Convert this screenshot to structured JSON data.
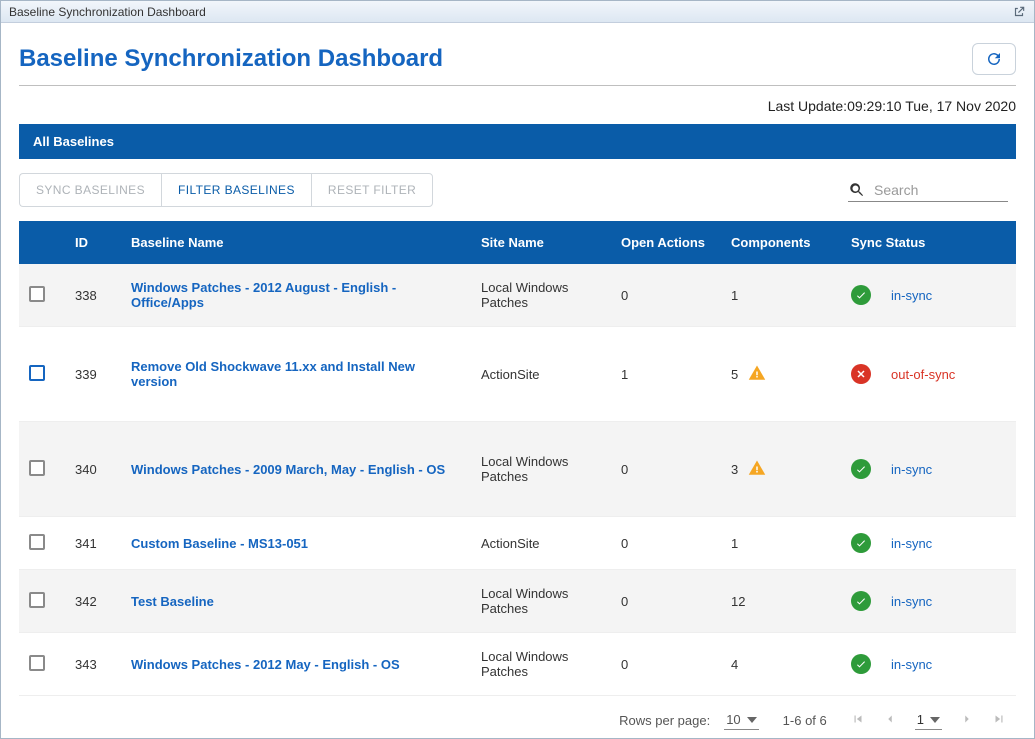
{
  "window": {
    "title": "Baseline Synchronization Dashboard"
  },
  "header": {
    "title": "Baseline Synchronization Dashboard"
  },
  "last_update": {
    "prefix": "Last Update:",
    "time": "09:29:10 Tue, 17 Nov 2020"
  },
  "tabs": {
    "all": "All Baselines"
  },
  "buttons": {
    "sync": "SYNC BASELINES",
    "filter": "FILTER BASELINES",
    "reset": "RESET FILTER"
  },
  "search": {
    "placeholder": "Search"
  },
  "columns": {
    "id": "ID",
    "name": "Baseline Name",
    "site": "Site Name",
    "open": "Open Actions",
    "comp": "Components",
    "status": "Sync Status"
  },
  "status_labels": {
    "in": "in-sync",
    "out": "out-of-sync"
  },
  "rows": [
    {
      "id": "338",
      "name": "Windows Patches - 2012 August - English - Office/Apps",
      "site": "Local Windows Patches",
      "open": "0",
      "comp": "1",
      "warn": false,
      "status": "in",
      "shade": true,
      "tall": false,
      "selected": false
    },
    {
      "id": "339",
      "name": "Remove Old Shockwave 11.xx and Install New version",
      "site": "ActionSite",
      "open": "1",
      "comp": "5",
      "warn": true,
      "status": "out",
      "shade": false,
      "tall": true,
      "selected": true
    },
    {
      "id": "340",
      "name": "Windows Patches - 2009 March, May - English - OS",
      "site": "Local Windows Patches",
      "open": "0",
      "comp": "3",
      "warn": true,
      "status": "in",
      "shade": true,
      "tall": true,
      "selected": false
    },
    {
      "id": "341",
      "name": "Custom Baseline - MS13-051",
      "site": "ActionSite",
      "open": "0",
      "comp": "1",
      "warn": false,
      "status": "in",
      "shade": false,
      "tall": false,
      "selected": false
    },
    {
      "id": "342",
      "name": "Test Baseline",
      "site": "Local Windows Patches",
      "open": "0",
      "comp": "12",
      "warn": false,
      "status": "in",
      "shade": true,
      "tall": false,
      "selected": false
    },
    {
      "id": "343",
      "name": "Windows Patches - 2012 May - English - OS",
      "site": "Local Windows Patches",
      "open": "0",
      "comp": "4",
      "warn": false,
      "status": "in",
      "shade": false,
      "tall": false,
      "selected": false
    }
  ],
  "pager": {
    "rpp_label": "Rows per page:",
    "rpp_value": "10",
    "range": "1-6 of 6",
    "page": "1"
  },
  "colors": {
    "primary": "#0a5ca8",
    "link": "#1565c0",
    "ok": "#2e9b3a",
    "bad": "#d93426",
    "warn": "#f5a623"
  }
}
